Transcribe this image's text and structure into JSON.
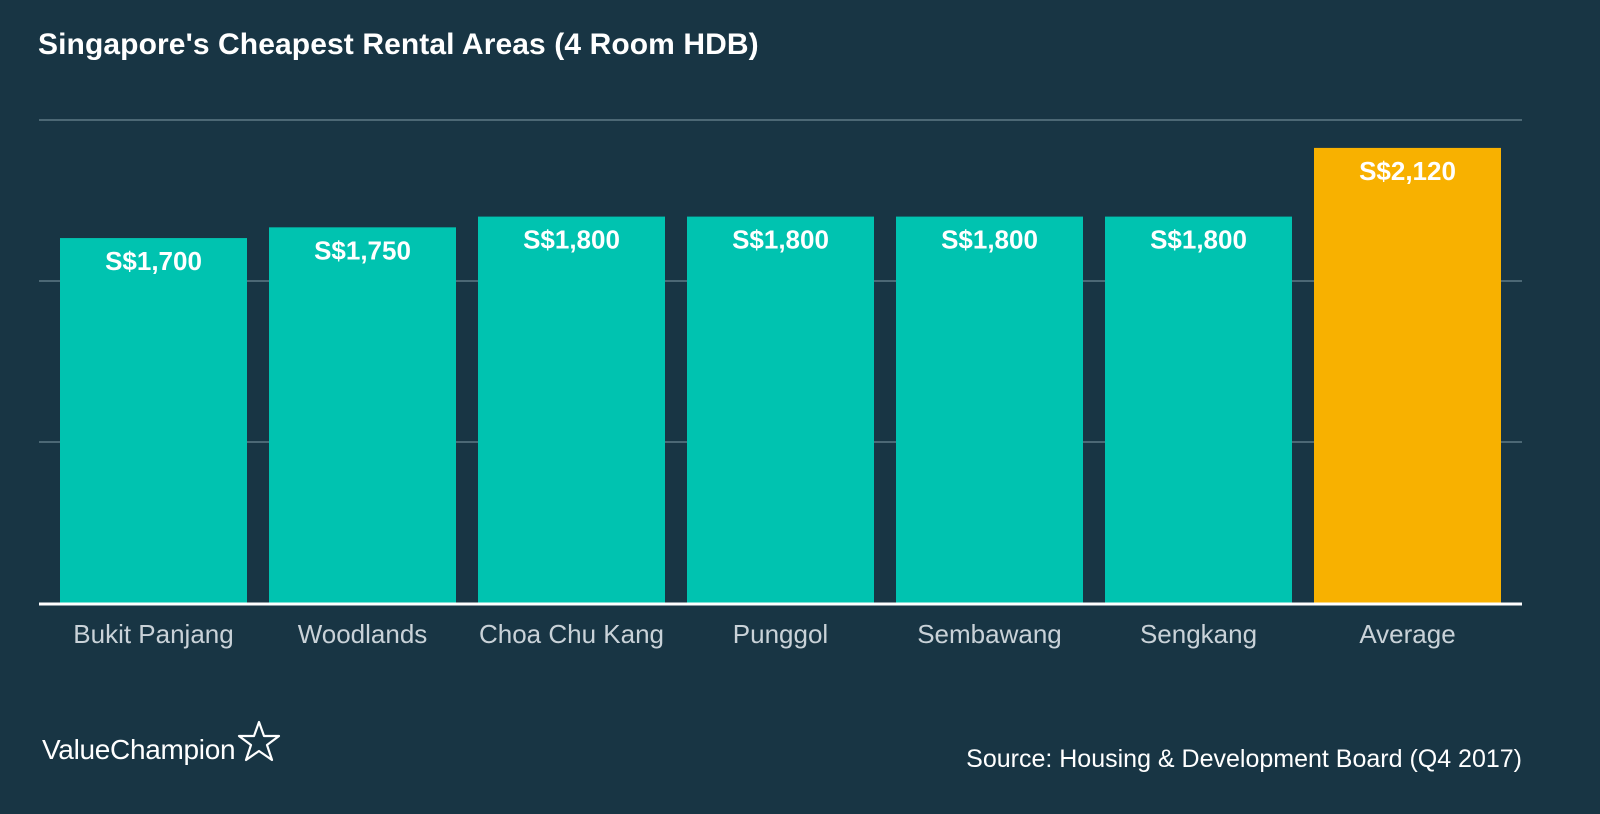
{
  "colors": {
    "background": "#183544",
    "bar": "#00c3b0",
    "highlight_bar": "#f8b100",
    "gridline": "#5e7985",
    "baseline": "#ffffff",
    "text": "#ffffff",
    "tick_text": "#c9d2d8"
  },
  "chart_data": {
    "type": "bar",
    "title": "Singapore's Cheapest Rental Areas (4 Room HDB)",
    "xlabel": "",
    "ylabel": "",
    "categories": [
      "Bukit Panjang",
      "Woodlands",
      "Choa Chu Kang",
      "Punggol",
      "Sembawang",
      "Sengkang",
      "Average"
    ],
    "values": [
      1700,
      1750,
      1800,
      1800,
      1800,
      1800,
      2120
    ],
    "value_labels": [
      "S$1,700",
      "S$1,750",
      "S$1,800",
      "S$1,800",
      "S$1,800",
      "S$1,800",
      "S$2,120"
    ],
    "highlighted_category": "Average",
    "ylim": [
      0,
      2250
    ],
    "gridlines": [
      750,
      1500,
      2250
    ],
    "grid": true,
    "legend": "none"
  },
  "brand": {
    "name": "ValueChampion",
    "icon": "star-outline-icon"
  },
  "source": "Source: Housing & Development Board (Q4 2017)"
}
